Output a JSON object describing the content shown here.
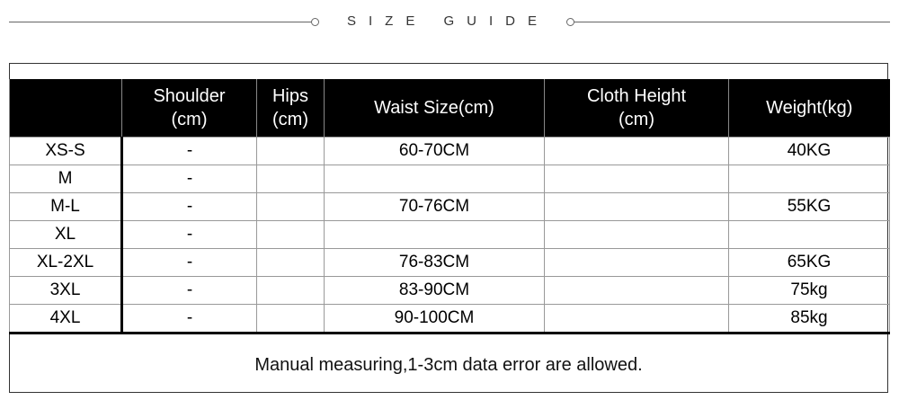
{
  "title": "SIZE GUIDE",
  "headers": [
    "",
    "Shoulder\n(cm)",
    "Hips\n(cm)",
    "Waist Size(cm)",
    "Cloth Height\n(cm)",
    "Weight(kg)"
  ],
  "rows": [
    [
      "XS-S",
      "-",
      "",
      "60-70CM",
      "",
      "40KG"
    ],
    [
      "M",
      "-",
      "",
      "",
      "",
      ""
    ],
    [
      "M-L",
      "-",
      "",
      "70-76CM",
      "",
      "55KG"
    ],
    [
      "XL",
      "-",
      "",
      "",
      "",
      ""
    ],
    [
      "XL-2XL",
      "-",
      "",
      "76-83CM",
      "",
      "65KG"
    ],
    [
      "3XL",
      "-",
      "",
      "83-90CM",
      "",
      "75kg"
    ],
    [
      "4XL",
      "-",
      "",
      "90-100CM",
      "",
      "85kg"
    ]
  ],
  "note": "Manual measuring,1-3cm data error are allowed."
}
